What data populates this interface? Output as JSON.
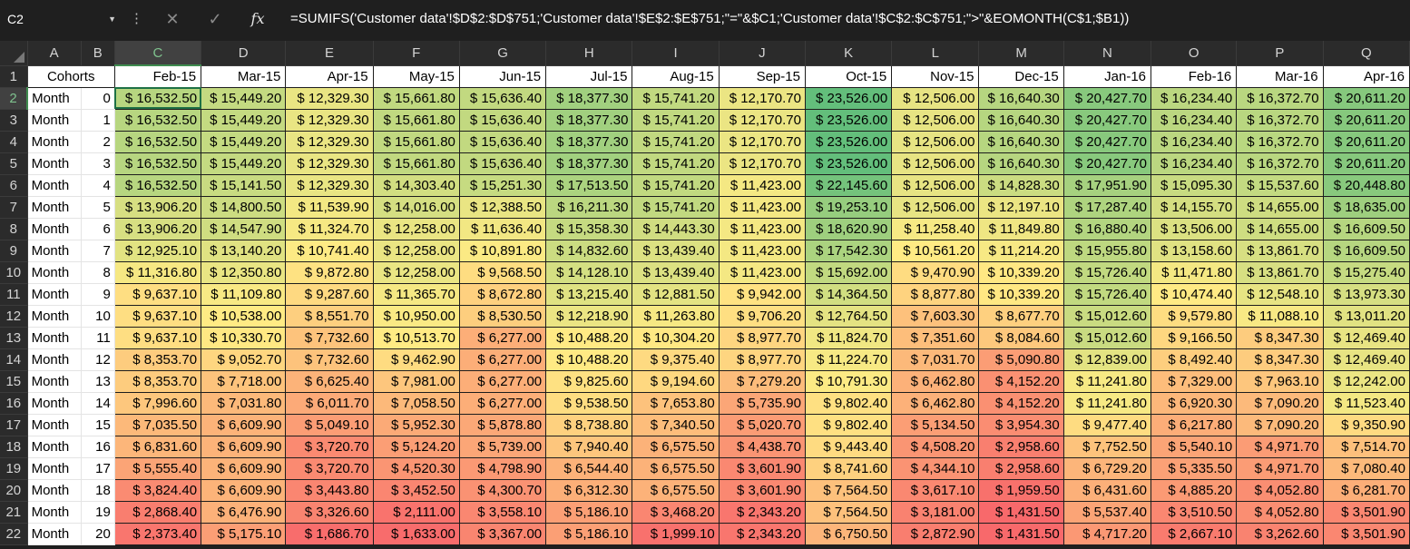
{
  "name_box": "C2",
  "formula": "=SUMIFS('Customer data'!$D$2:$D$751;'Customer data'!$E$2:$E$751;\"=\"&$C1;'Customer data'!$C$2:$C$751;\">\"&EOMONTH(C$1;$B1))",
  "column_letters": [
    "A",
    "B",
    "C",
    "D",
    "E",
    "F",
    "G",
    "H",
    "I",
    "J",
    "K",
    "L",
    "M",
    "N",
    "O",
    "P",
    "Q"
  ],
  "row_numbers": [
    "1",
    "2",
    "3",
    "4",
    "5",
    "6",
    "7",
    "8",
    "9",
    "10",
    "11",
    "12",
    "13",
    "14",
    "15",
    "16",
    "17",
    "18",
    "19",
    "20",
    "21",
    "22"
  ],
  "header_label": "Cohorts",
  "row_label": "Month",
  "month_offsets": [
    "0",
    "1",
    "2",
    "3",
    "4",
    "5",
    "6",
    "7",
    "8",
    "9",
    "10",
    "11",
    "12",
    "13",
    "14",
    "15",
    "16",
    "17",
    "18",
    "19",
    "20"
  ],
  "cohort_months": [
    "Feb-15",
    "Mar-15",
    "Apr-15",
    "May-15",
    "Jun-15",
    "Jul-15",
    "Aug-15",
    "Sep-15",
    "Oct-15",
    "Nov-15",
    "Dec-15",
    "Jan-16",
    "Feb-16",
    "Mar-16",
    "Apr-16"
  ],
  "scale_colors": {
    "low": "#f8696b",
    "mid": "#ffeb84",
    "high": "#63be7b"
  },
  "values": [
    [
      "$ 16,532.50",
      "$ 15,449.20",
      "$ 12,329.30",
      "$ 15,661.80",
      "$ 15,636.40",
      "$ 18,377.30",
      "$ 15,741.20",
      "$ 12,170.70",
      "$ 23,526.00",
      "$ 12,506.00",
      "$ 16,640.30",
      "$ 20,427.70",
      "$ 16,234.40",
      "$ 16,372.70",
      "$ 20,611.20"
    ],
    [
      "$ 16,532.50",
      "$ 15,449.20",
      "$ 12,329.30",
      "$ 15,661.80",
      "$ 15,636.40",
      "$ 18,377.30",
      "$ 15,741.20",
      "$ 12,170.70",
      "$ 23,526.00",
      "$ 12,506.00",
      "$ 16,640.30",
      "$ 20,427.70",
      "$ 16,234.40",
      "$ 16,372.70",
      "$ 20,611.20"
    ],
    [
      "$ 16,532.50",
      "$ 15,449.20",
      "$ 12,329.30",
      "$ 15,661.80",
      "$ 15,636.40",
      "$ 18,377.30",
      "$ 15,741.20",
      "$ 12,170.70",
      "$ 23,526.00",
      "$ 12,506.00",
      "$ 16,640.30",
      "$ 20,427.70",
      "$ 16,234.40",
      "$ 16,372.70",
      "$ 20,611.20"
    ],
    [
      "$ 16,532.50",
      "$ 15,449.20",
      "$ 12,329.30",
      "$ 15,661.80",
      "$ 15,636.40",
      "$ 18,377.30",
      "$ 15,741.20",
      "$ 12,170.70",
      "$ 23,526.00",
      "$ 12,506.00",
      "$ 16,640.30",
      "$ 20,427.70",
      "$ 16,234.40",
      "$ 16,372.70",
      "$ 20,611.20"
    ],
    [
      "$ 16,532.50",
      "$ 15,141.50",
      "$ 12,329.30",
      "$ 14,303.40",
      "$ 15,251.30",
      "$ 17,513.50",
      "$ 15,741.20",
      "$ 11,423.00",
      "$ 22,145.60",
      "$ 12,506.00",
      "$ 14,828.30",
      "$ 17,951.90",
      "$ 15,095.30",
      "$ 15,537.60",
      "$ 20,448.80"
    ],
    [
      "$ 13,906.20",
      "$ 14,800.50",
      "$ 11,539.90",
      "$ 14,016.00",
      "$ 12,388.50",
      "$ 16,211.30",
      "$ 15,741.20",
      "$ 11,423.00",
      "$ 19,253.10",
      "$ 12,506.00",
      "$ 12,197.10",
      "$ 17,287.40",
      "$ 14,155.70",
      "$ 14,655.00",
      "$ 18,635.00"
    ],
    [
      "$ 13,906.20",
      "$ 14,547.90",
      "$ 11,324.70",
      "$ 12,258.00",
      "$ 11,636.40",
      "$ 15,358.30",
      "$ 14,443.30",
      "$ 11,423.00",
      "$ 18,620.90",
      "$ 11,258.40",
      "$ 11,849.80",
      "$ 16,880.40",
      "$ 13,506.00",
      "$ 14,655.00",
      "$ 16,609.50"
    ],
    [
      "$ 12,925.10",
      "$ 13,140.20",
      "$ 10,741.40",
      "$ 12,258.00",
      "$ 10,891.80",
      "$ 14,832.60",
      "$ 13,439.40",
      "$ 11,423.00",
      "$ 17,542.30",
      "$ 10,561.20",
      "$ 11,214.20",
      "$ 15,955.80",
      "$ 13,158.60",
      "$ 13,861.70",
      "$ 16,609.50"
    ],
    [
      "$ 11,316.80",
      "$ 12,350.80",
      "$ 9,872.80",
      "$ 12,258.00",
      "$ 9,568.50",
      "$ 14,128.10",
      "$ 13,439.40",
      "$ 11,423.00",
      "$ 15,692.00",
      "$ 9,470.90",
      "$ 10,339.20",
      "$ 15,726.40",
      "$ 11,471.80",
      "$ 13,861.70",
      "$ 15,275.40"
    ],
    [
      "$ 9,637.10",
      "$ 11,109.80",
      "$ 9,287.60",
      "$ 11,365.70",
      "$ 8,672.80",
      "$ 13,215.40",
      "$ 12,881.50",
      "$ 9,942.00",
      "$ 14,364.50",
      "$ 8,877.80",
      "$ 10,339.20",
      "$ 15,726.40",
      "$ 10,474.40",
      "$ 12,548.10",
      "$ 13,973.30"
    ],
    [
      "$ 9,637.10",
      "$ 10,538.00",
      "$ 8,551.70",
      "$ 10,950.00",
      "$ 8,530.50",
      "$ 12,218.90",
      "$ 11,263.80",
      "$ 9,706.20",
      "$ 12,764.50",
      "$ 7,603.30",
      "$ 8,677.70",
      "$ 15,012.60",
      "$ 9,579.80",
      "$ 11,088.10",
      "$ 13,011.20"
    ],
    [
      "$ 9,637.10",
      "$ 10,330.70",
      "$ 7,732.60",
      "$ 10,513.70",
      "$ 6,277.00",
      "$ 10,488.20",
      "$ 10,304.20",
      "$ 8,977.70",
      "$ 11,824.70",
      "$ 7,351.60",
      "$ 8,084.60",
      "$ 15,012.60",
      "$ 9,166.50",
      "$ 8,347.30",
      "$ 12,469.40"
    ],
    [
      "$ 8,353.70",
      "$ 9,052.70",
      "$ 7,732.60",
      "$ 9,462.90",
      "$ 6,277.00",
      "$ 10,488.20",
      "$ 9,375.40",
      "$ 8,977.70",
      "$ 11,224.70",
      "$ 7,031.70",
      "$ 5,090.80",
      "$ 12,839.00",
      "$ 8,492.40",
      "$ 8,347.30",
      "$ 12,469.40"
    ],
    [
      "$ 8,353.70",
      "$ 7,718.00",
      "$ 6,625.40",
      "$ 7,981.00",
      "$ 6,277.00",
      "$ 9,825.60",
      "$ 9,194.60",
      "$ 7,279.20",
      "$ 10,791.30",
      "$ 6,462.80",
      "$ 4,152.20",
      "$ 11,241.80",
      "$ 7,329.00",
      "$ 7,963.10",
      "$ 12,242.00"
    ],
    [
      "$ 7,996.60",
      "$ 7,031.80",
      "$ 6,011.70",
      "$ 7,058.50",
      "$ 6,277.00",
      "$ 9,538.50",
      "$ 7,653.80",
      "$ 5,735.90",
      "$ 9,802.40",
      "$ 6,462.80",
      "$ 4,152.20",
      "$ 11,241.80",
      "$ 6,920.30",
      "$ 7,090.20",
      "$ 11,523.40"
    ],
    [
      "$ 7,035.50",
      "$ 6,609.90",
      "$ 5,049.10",
      "$ 5,952.30",
      "$ 5,878.80",
      "$ 8,738.80",
      "$ 7,340.50",
      "$ 5,020.70",
      "$ 9,802.40",
      "$ 5,134.50",
      "$ 3,954.30",
      "$ 9,477.40",
      "$ 6,217.80",
      "$ 7,090.20",
      "$ 9,350.90"
    ],
    [
      "$ 6,831.60",
      "$ 6,609.90",
      "$ 3,720.70",
      "$ 5,124.20",
      "$ 5,739.00",
      "$ 7,940.40",
      "$ 6,575.50",
      "$ 4,438.70",
      "$ 9,443.40",
      "$ 4,508.20",
      "$ 2,958.60",
      "$ 7,752.50",
      "$ 5,540.10",
      "$ 4,971.70",
      "$ 7,514.70"
    ],
    [
      "$ 5,555.40",
      "$ 6,609.90",
      "$ 3,720.70",
      "$ 4,520.30",
      "$ 4,798.90",
      "$ 6,544.40",
      "$ 6,575.50",
      "$ 3,601.90",
      "$ 8,741.60",
      "$ 4,344.10",
      "$ 2,958.60",
      "$ 6,729.20",
      "$ 5,335.50",
      "$ 4,971.70",
      "$ 7,080.40"
    ],
    [
      "$ 3,824.40",
      "$ 6,609.90",
      "$ 3,443.80",
      "$ 3,452.50",
      "$ 4,300.70",
      "$ 6,312.30",
      "$ 6,575.50",
      "$ 3,601.90",
      "$ 7,564.50",
      "$ 3,617.10",
      "$ 1,959.50",
      "$ 6,431.60",
      "$ 4,885.20",
      "$ 4,052.80",
      "$ 6,281.70"
    ],
    [
      "$ 2,868.40",
      "$ 6,476.90",
      "$ 3,326.60",
      "$ 2,111.00",
      "$ 3,558.10",
      "$ 5,186.10",
      "$ 3,468.20",
      "$ 2,343.20",
      "$ 7,564.50",
      "$ 3,181.00",
      "$ 1,431.50",
      "$ 5,537.40",
      "$ 3,510.50",
      "$ 4,052.80",
      "$ 3,501.90"
    ],
    [
      "$ 2,373.40",
      "$ 5,175.10",
      "$ 1,686.70",
      "$ 1,633.00",
      "$ 3,367.00",
      "$ 5,186.10",
      "$ 1,999.10",
      "$ 2,343.20",
      "$ 6,750.50",
      "$ 2,872.90",
      "$ 1,431.50",
      "$ 4,717.20",
      "$ 2,667.10",
      "$ 3,262.60",
      "$ 3,501.90"
    ]
  ]
}
